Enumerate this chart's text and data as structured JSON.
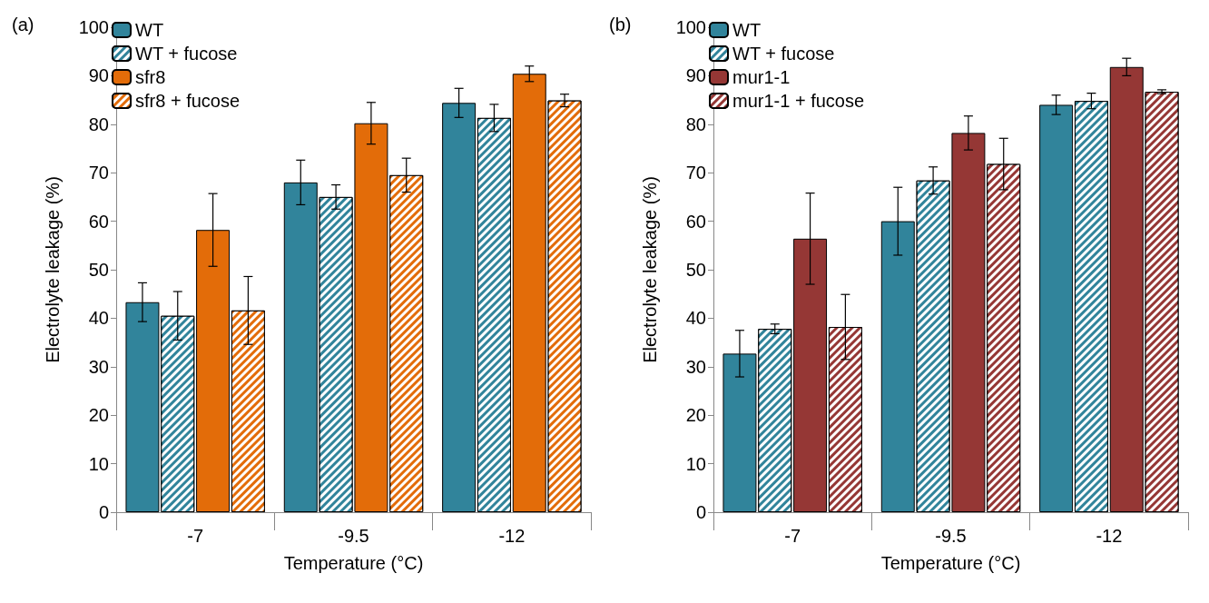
{
  "chart_data": [
    {
      "type": "bar",
      "title": "(a)",
      "xlabel": "Temperature (°C)",
      "ylabel": "Electrolyte leakage (%)",
      "categories": [
        "-7",
        "-9.5",
        "-12"
      ],
      "ylim": [
        0,
        100
      ],
      "yticks": [
        0,
        10,
        20,
        30,
        40,
        50,
        60,
        70,
        80,
        90,
        100
      ],
      "grid": false,
      "legend": "top left",
      "series": [
        {
          "name": "WT",
          "color": "#31849b",
          "values": [
            43.3,
            68,
            84.4
          ],
          "errors": [
            4,
            4.6,
            3
          ]
        },
        {
          "name": "WT + fucose",
          "color": "#31849b",
          "values": [
            40.5,
            65,
            81.3
          ],
          "errors": [
            5,
            2.5,
            2.8
          ]
        },
        {
          "name": "sfr8",
          "color": "#e36c09",
          "values": [
            58.2,
            80.2,
            90.4
          ],
          "errors": [
            7.5,
            4.3,
            1.6
          ]
        },
        {
          "name": "sfr8 + fucose",
          "color": "#e36c09",
          "values": [
            41.6,
            69.5,
            84.9
          ],
          "errors": [
            7,
            3.5,
            1.3
          ]
        }
      ]
    },
    {
      "type": "bar",
      "title": "(b)",
      "xlabel": "Temperature (°C)",
      "ylabel": "Electrolyte leakage (%)",
      "categories": [
        "-7",
        "-9.5",
        "-12"
      ],
      "ylim": [
        0,
        100
      ],
      "yticks": [
        0,
        10,
        20,
        30,
        40,
        50,
        60,
        70,
        80,
        90,
        100
      ],
      "grid": false,
      "legend": "top left",
      "series": [
        {
          "name": "WT",
          "color": "#31849b",
          "values": [
            32.7,
            60,
            84
          ],
          "errors": [
            4.8,
            7,
            2
          ]
        },
        {
          "name": "WT + fucose",
          "color": "#31849b",
          "values": [
            37.8,
            68.4,
            84.8
          ],
          "errors": [
            1,
            2.8,
            1.6
          ]
        },
        {
          "name": "mur1-1",
          "color": "#953735",
          "values": [
            56.4,
            78.2,
            91.8
          ],
          "errors": [
            9.4,
            3.5,
            1.8
          ]
        },
        {
          "name": "mur1-1 + fucose",
          "color": "#953735",
          "values": [
            38.2,
            71.8,
            86.7
          ],
          "errors": [
            6.7,
            5.3,
            0.4
          ]
        }
      ]
    }
  ]
}
